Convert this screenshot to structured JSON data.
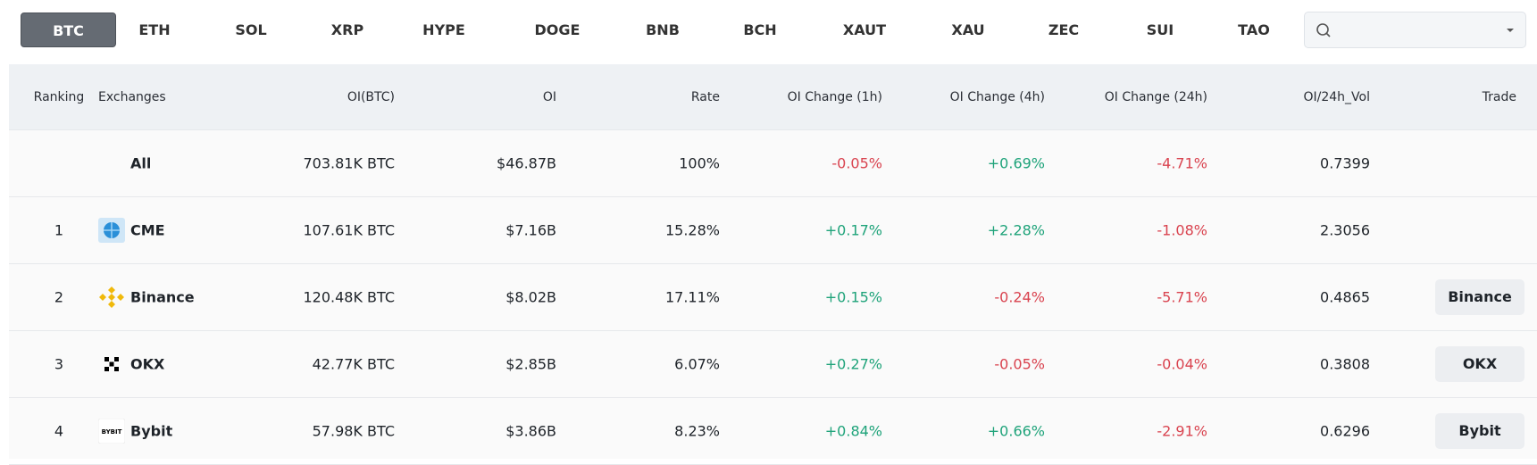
{
  "tabs": [
    "BTC",
    "ETH",
    "SOL",
    "XRP",
    "HYPE",
    "DOGE",
    "BNB",
    "BCH",
    "XAUT",
    "XAU",
    "ZEC",
    "SUI",
    "TAO"
  ],
  "table": {
    "headers": [
      "Ranking",
      "Exchanges",
      "OI(BTC)",
      "OI",
      "Rate",
      "OI Change (1h)",
      "OI Change (4h)",
      "OI Change (24h)",
      "OI/24h_Vol",
      "Trade"
    ],
    "rows": [
      {
        "exchange": "All",
        "oi_coin": "703.81K BTC",
        "oi": "$46.87B",
        "rate": "100%",
        "change_1h": "-0.05%",
        "change_4h": "+0.69%",
        "change_24h": "-4.71%",
        "oi_vol": "0.7399"
      },
      {
        "ranking": "1",
        "exchange": "CME",
        "oi_coin": "107.61K BTC",
        "oi": "$7.16B",
        "rate": "15.28%",
        "change_1h": "+0.17%",
        "change_4h": "+2.28%",
        "change_24h": "-1.08%",
        "oi_vol": "2.3056"
      },
      {
        "ranking": "2",
        "exchange": "Binance",
        "oi_coin": "120.48K BTC",
        "oi": "$8.02B",
        "rate": "17.11%",
        "change_1h": "+0.15%",
        "change_4h": "-0.24%",
        "change_24h": "-5.71%",
        "oi_vol": "0.4865",
        "trade": "Binance"
      },
      {
        "ranking": "3",
        "exchange": "OKX",
        "oi_coin": "42.77K BTC",
        "oi": "$2.85B",
        "rate": "6.07%",
        "change_1h": "+0.27%",
        "change_4h": "-0.05%",
        "change_24h": "-0.04%",
        "oi_vol": "0.3808",
        "trade": "OKX"
      },
      {
        "ranking": "4",
        "exchange": "Bybit",
        "oi_coin": "57.98K BTC",
        "oi": "$3.86B",
        "rate": "8.23%",
        "change_1h": "+0.84%",
        "change_4h": "+0.66%",
        "change_24h": "-2.91%",
        "oi_vol": "0.6296",
        "trade": "Bybit"
      }
    ]
  }
}
